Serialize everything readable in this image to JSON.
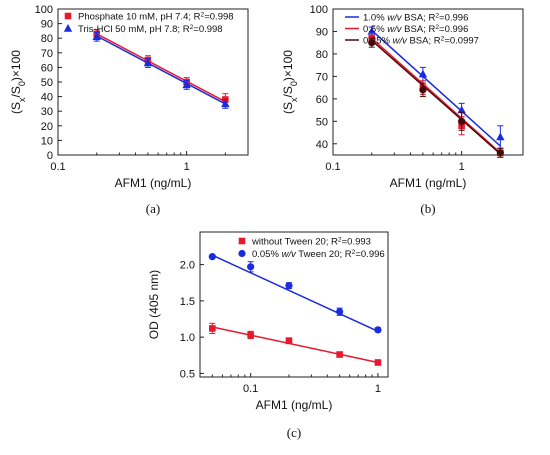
{
  "chart_data": [
    {
      "type": "scatter",
      "panel_label": "(a)",
      "xlabel": "AFM1 (ng/mL)",
      "ylabel_parts": [
        "(S",
        "x",
        "/S",
        "0",
        ")×100"
      ],
      "x_scale": "log",
      "xlim": [
        0.1,
        3
      ],
      "ylim": [
        0,
        100
      ],
      "x_ticks": [
        {
          "value": 0.1,
          "label": "0.1"
        },
        {
          "value": 1,
          "label": "1"
        }
      ],
      "y_ticks": [
        0,
        10,
        20,
        30,
        40,
        50,
        60,
        70,
        80,
        90,
        100
      ],
      "grid": false,
      "legend_position": "top-left",
      "series": [
        {
          "name": "Phosphate 10 mM, pH 7.4; R²=0.998",
          "legend_parts": [
            "Phosphate 10 mM, pH 7.4; R",
            "2",
            "=0.998"
          ],
          "color": "#e8192c",
          "marker": "square",
          "x": [
            0.2,
            0.5,
            1,
            2
          ],
          "y": [
            83,
            65,
            50,
            38
          ],
          "err": [
            3,
            3,
            3,
            4
          ],
          "fit": {
            "x": [
              0.2,
              2
            ],
            "y": [
              83,
              36.5
            ]
          }
        },
        {
          "name": "Tris-HCl 50 mM, pH 7.8; R²=0.998",
          "legend_parts": [
            "Tris-HCl 50 mM, pH 7.8; R",
            "2",
            "=0.998"
          ],
          "color": "#1a2be0",
          "marker": "triangle",
          "x": [
            0.2,
            0.5,
            1,
            2
          ],
          "y": [
            81,
            63,
            48,
            35
          ],
          "err": [
            3,
            3,
            3,
            3
          ],
          "fit": {
            "x": [
              0.2,
              2
            ],
            "y": [
              81.5,
              35
            ]
          }
        }
      ]
    },
    {
      "type": "scatter",
      "panel_label": "(b)",
      "xlabel": "AFM1 (ng/mL)",
      "ylabel_parts": [
        "(S",
        "x",
        "/S",
        "0",
        ")×100"
      ],
      "x_scale": "log",
      "xlim": [
        0.1,
        3
      ],
      "ylim": [
        35,
        100
      ],
      "x_ticks": [
        {
          "value": 0.1,
          "label": "0.1"
        },
        {
          "value": 1,
          "label": "1"
        }
      ],
      "y_ticks": [
        40,
        50,
        60,
        70,
        80,
        90,
        100
      ],
      "grid": false,
      "legend_position": "top-right",
      "series": [
        {
          "name": "1.0% w/v BSA; R²=0.996",
          "legend_parts": [
            "1.0% ",
            "w/v",
            " BSA; R",
            "2",
            "=0.996"
          ],
          "color": "#1a2be0",
          "marker": "triangle",
          "x": [
            0.2,
            0.5,
            1,
            2
          ],
          "y": [
            90,
            71,
            55,
            43
          ],
          "err": [
            2,
            3,
            3,
            5
          ],
          "fit": {
            "x": [
              0.2,
              2
            ],
            "y": [
              90.5,
              39
            ]
          }
        },
        {
          "name": "0.5% w/v BSA; R²=0.996",
          "legend_parts": [
            "0.5% ",
            "w/v",
            " BSA; R",
            "2",
            "=0.996"
          ],
          "color": "#e8192c",
          "marker": "square",
          "x": [
            0.2,
            0.5,
            1,
            2
          ],
          "y": [
            87,
            65,
            48,
            36
          ],
          "err": [
            2,
            3,
            4,
            2
          ],
          "fit": {
            "x": [
              0.2,
              2
            ],
            "y": [
              87,
              36
            ]
          }
        },
        {
          "name": "0.25% w/v BSA; R²=0.0997",
          "legend_parts": [
            "0.25% ",
            "w/v",
            " BSA; R",
            "2",
            "=0.0997"
          ],
          "color": "#4a0a0a",
          "marker": "circle",
          "x": [
            0.2,
            0.5,
            1,
            2
          ],
          "y": [
            85,
            64,
            50,
            36
          ],
          "err": [
            2,
            3,
            4,
            2
          ],
          "fit": {
            "x": [
              0.2,
              2
            ],
            "y": [
              86,
              35.5
            ]
          }
        }
      ]
    },
    {
      "type": "scatter",
      "panel_label": "(c)",
      "xlabel": "AFM1 (ng/mL)",
      "ylabel_parts": [
        "OD (405 nm)"
      ],
      "x_scale": "log",
      "xlim": [
        0.04,
        1.2
      ],
      "ylim": [
        0.45,
        2.45
      ],
      "x_ticks": [
        {
          "value": 0.1,
          "label": "0.1"
        },
        {
          "value": 1,
          "label": "1"
        }
      ],
      "y_ticks": [
        0.5,
        1.0,
        1.5,
        2.0
      ],
      "y_tick_labels": [
        "0.5",
        "1.0",
        "1.5",
        "2.0"
      ],
      "grid": false,
      "legend_position": "top-right",
      "series": [
        {
          "name": "without Tween 20; R²=0.993",
          "legend_parts": [
            "without Tween 20; R",
            "2",
            "=0.993"
          ],
          "color": "#e8192c",
          "marker": "square",
          "x": [
            0.05,
            0.1,
            0.2,
            0.5,
            1
          ],
          "y": [
            1.12,
            1.03,
            0.95,
            0.76,
            0.65
          ],
          "err": [
            0.07,
            0.05,
            0.04,
            0.03,
            0.03
          ],
          "fit": {
            "x": [
              0.05,
              1
            ],
            "y": [
              1.14,
              0.65
            ]
          }
        },
        {
          "name": "0.05% w/v Tween 20; R²=0.996",
          "legend_parts": [
            "0.05% ",
            "w/v",
            " Tween 20; R",
            "2",
            "=0.996"
          ],
          "color": "#1a2be0",
          "marker": "circle",
          "x": [
            0.05,
            0.1,
            0.2,
            0.5,
            1
          ],
          "y": [
            2.11,
            1.97,
            1.71,
            1.35,
            1.1
          ],
          "err": [
            0.02,
            0.07,
            0.04,
            0.05,
            0.03
          ],
          "fit": {
            "x": [
              0.05,
              1
            ],
            "y": [
              2.13,
              1.08
            ]
          }
        }
      ]
    }
  ]
}
